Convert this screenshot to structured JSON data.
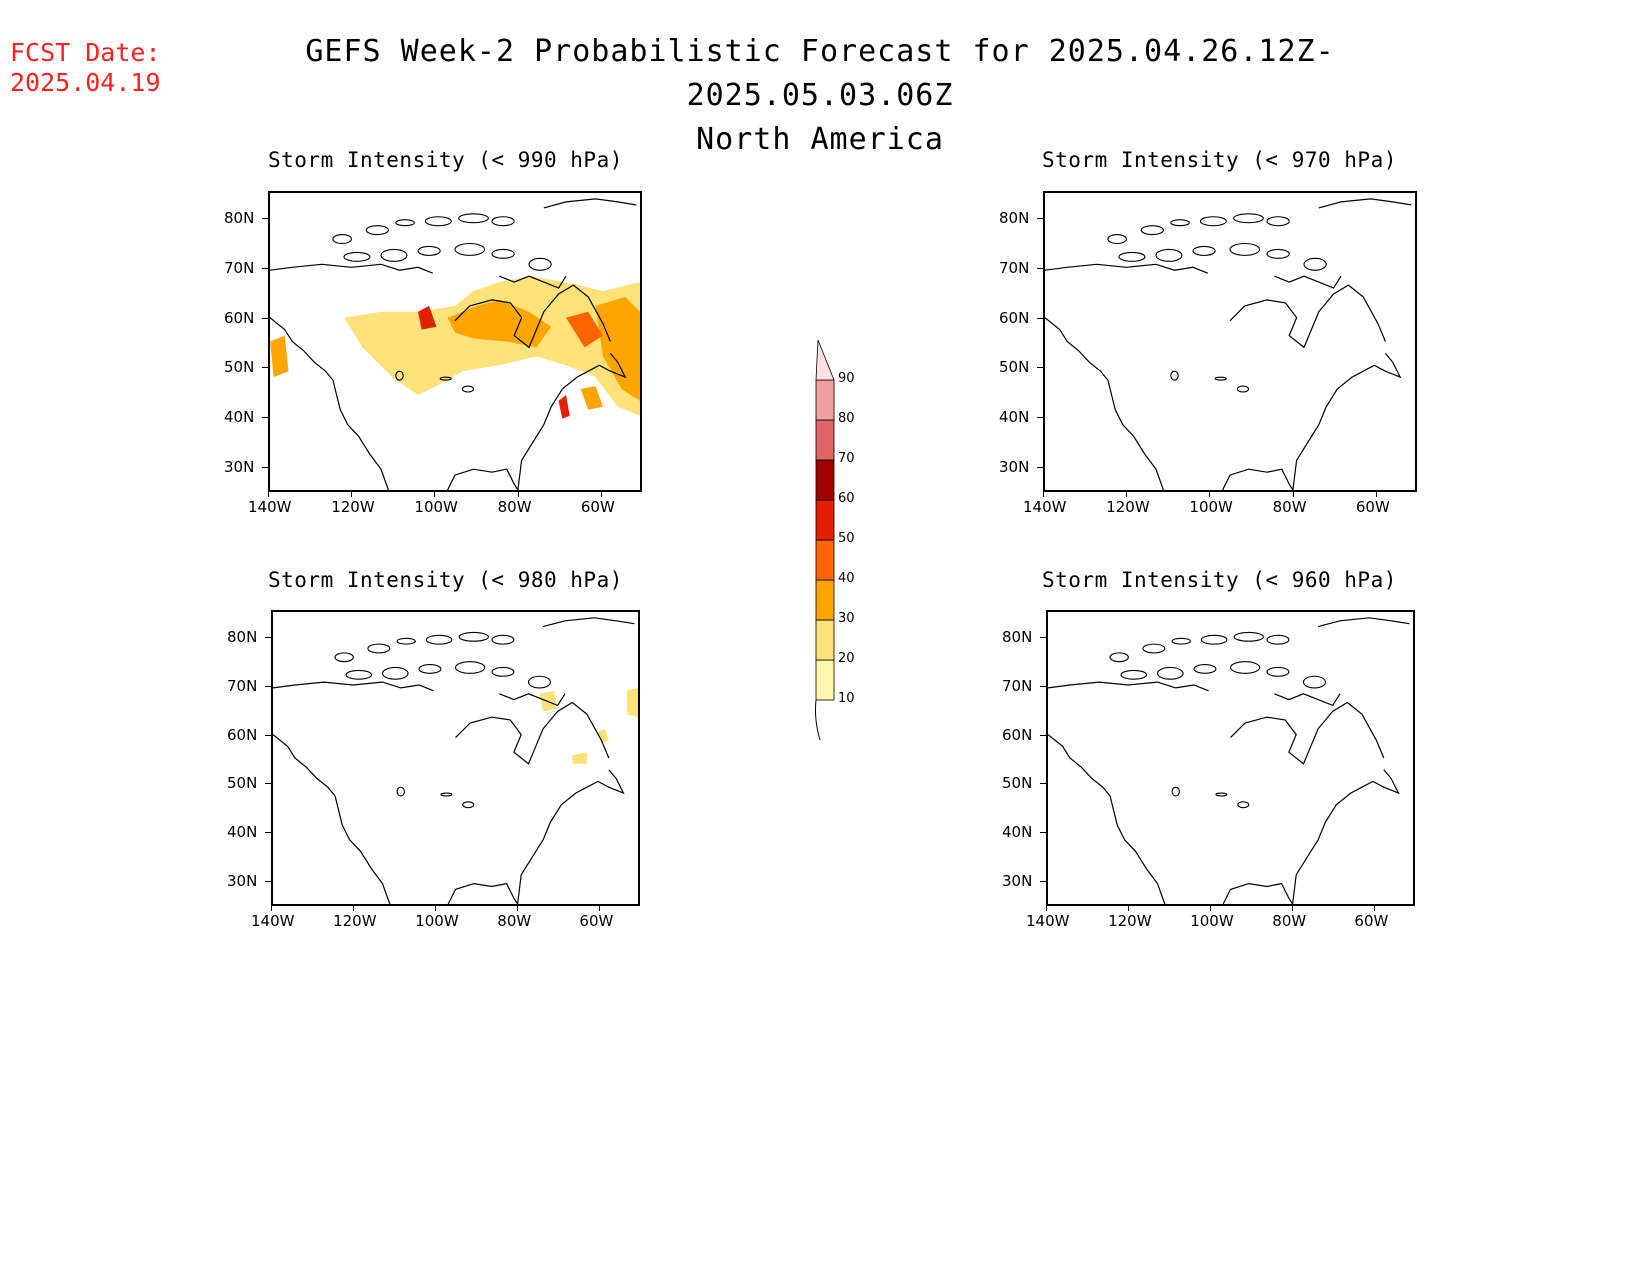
{
  "header": {
    "fcst_label": "FCST Date:",
    "fcst_date": "2025.04.19",
    "title_line1": "GEFS Week-2 Probabilistic Forecast for 2025.04.26.12Z-2025.05.03.06Z",
    "title_line2": "North America"
  },
  "panels": [
    {
      "title": "Storm Intensity (< 990 hPa)",
      "has_shading": true
    },
    {
      "title": "Storm Intensity (< 970 hPa)",
      "has_shading": false
    },
    {
      "title": "Storm Intensity (< 980 hPa)",
      "has_shading": true
    },
    {
      "title": "Storm Intensity (< 960 hPa)",
      "has_shading": false
    }
  ],
  "axes": {
    "lat_labels": [
      "80N",
      "70N",
      "60N",
      "50N",
      "40N",
      "30N"
    ],
    "lon_labels": [
      "140W",
      "120W",
      "100W",
      "80W",
      "60W"
    ]
  },
  "colorbar": {
    "levels": [
      "10",
      "20",
      "30",
      "40",
      "50",
      "60",
      "70",
      "80",
      "90"
    ],
    "colors": [
      "#fff7b0",
      "#fde27a",
      "#ffa500",
      "#ff6400",
      "#e02000",
      "#a00000",
      "#e06464",
      "#f0a0a0",
      "#fde0e0"
    ]
  }
}
